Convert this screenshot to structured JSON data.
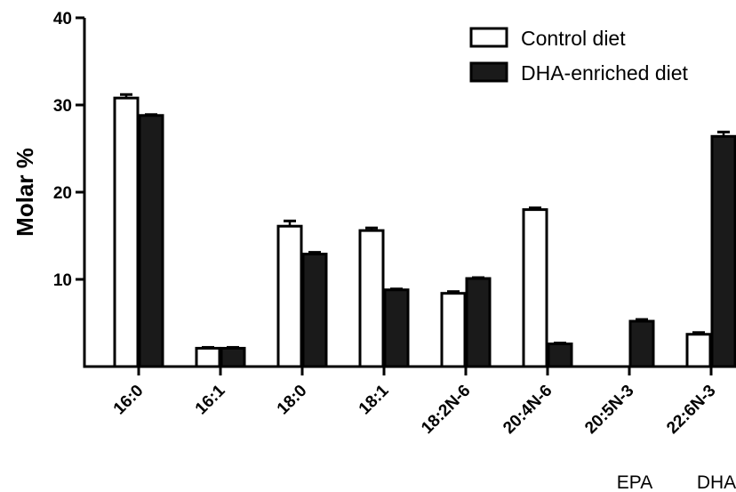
{
  "chart_data": {
    "type": "bar",
    "ylabel": "Molar %",
    "xlabel": "",
    "ylim": [
      0,
      40
    ],
    "yticks": [
      10,
      20,
      30,
      40
    ],
    "grid": false,
    "legend_position": "top-right",
    "categories": [
      "16:0",
      "16:1",
      "18:0",
      "18:1",
      "18:2N-6",
      "20:4N-6",
      "20:5N-3",
      "22:6N-3"
    ],
    "category_sublabels": [
      "",
      "",
      "",
      "",
      "",
      "",
      "EPA",
      "DHA"
    ],
    "series": [
      {
        "name": "Control diet",
        "fill": "#ffffff",
        "values": [
          30.8,
          2.1,
          16.1,
          15.6,
          8.4,
          18.0,
          null,
          3.7
        ],
        "errors": [
          0.4,
          0.1,
          0.6,
          0.3,
          0.2,
          0.2,
          null,
          0.2
        ]
      },
      {
        "name": "DHA-enriched diet",
        "fill": "#1a1a1a",
        "values": [
          28.8,
          2.1,
          12.9,
          8.8,
          10.1,
          2.6,
          5.2,
          26.4
        ],
        "errors": [
          0.1,
          0.1,
          0.2,
          0.1,
          0.1,
          0.1,
          0.2,
          0.5
        ]
      }
    ]
  }
}
